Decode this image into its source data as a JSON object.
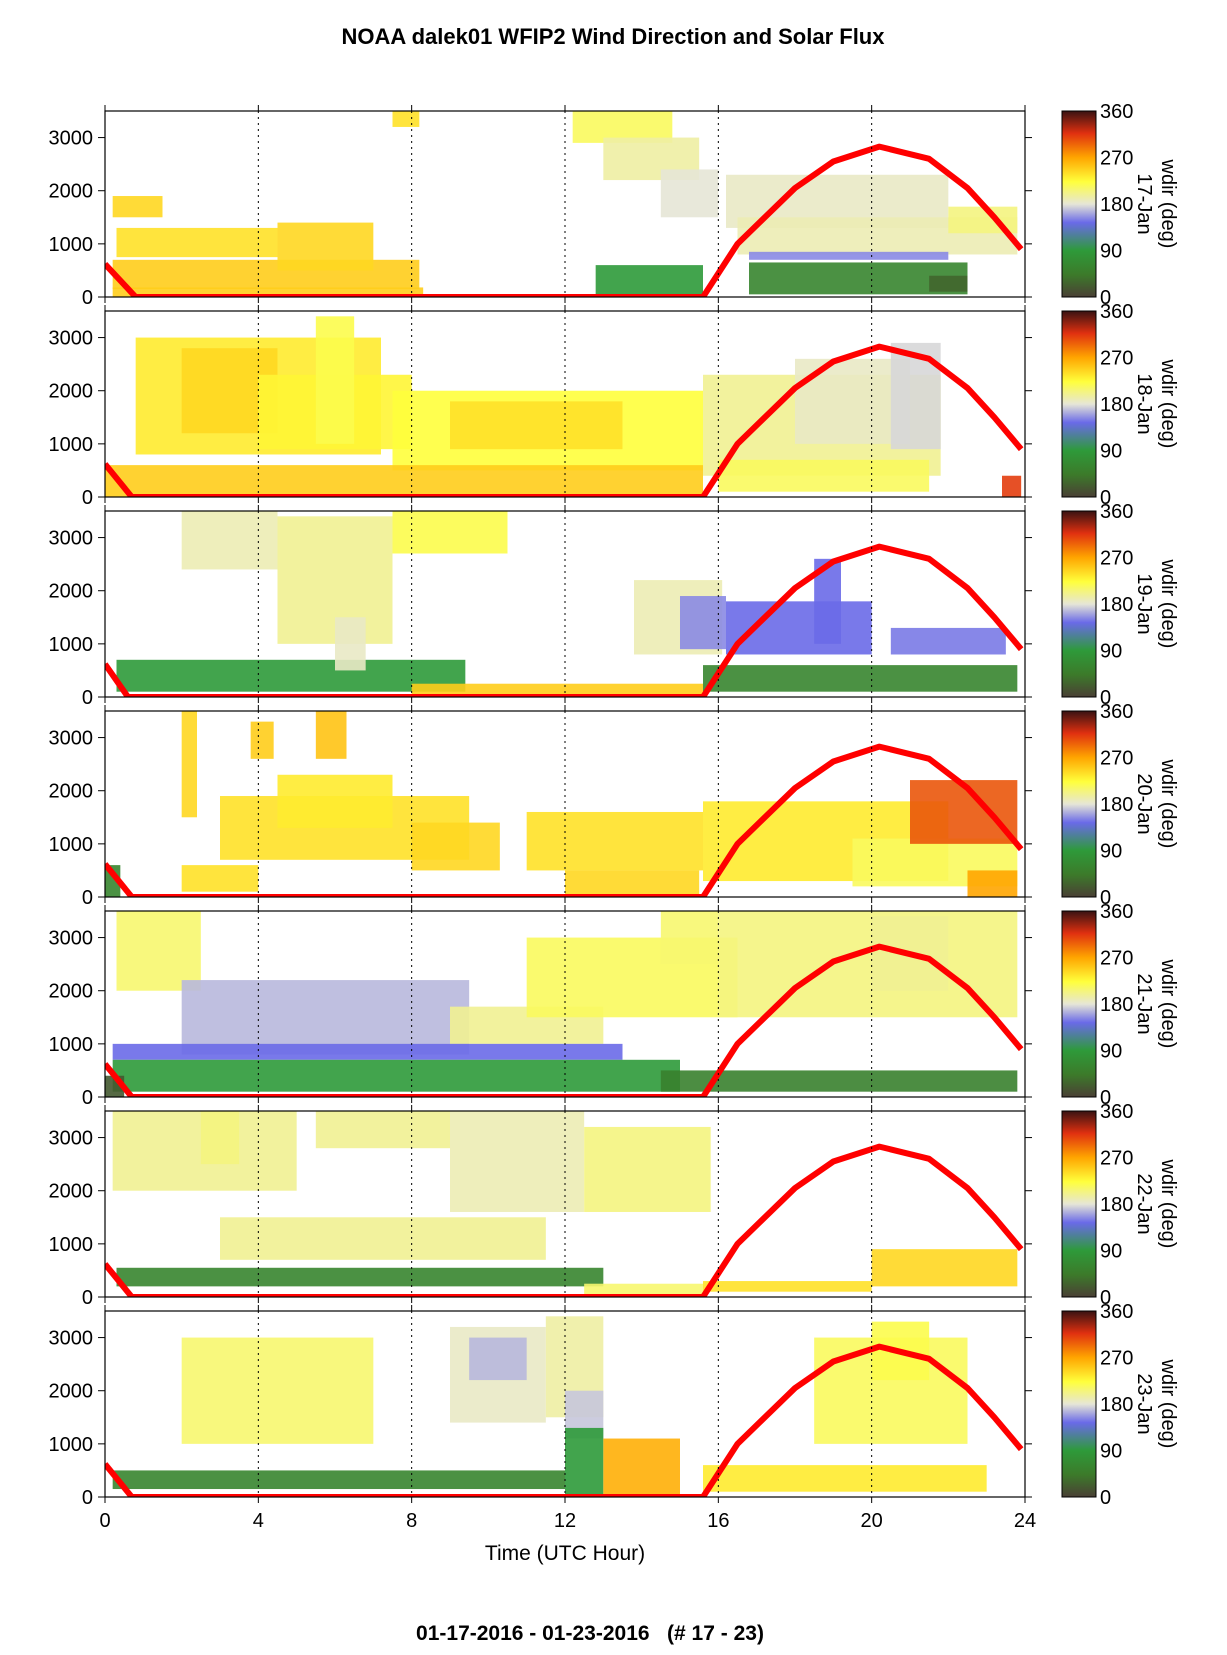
{
  "chart_data": {
    "type": "heatmap",
    "title": "NOAA dalek01 WFIP2 Wind Direction and Solar Flux",
    "footer": "01-17-2016 - 01-23-2016   (# 17 - 23)",
    "xlabel": "Time (UTC Hour)",
    "xlim": [
      0,
      24
    ],
    "x_ticks": [
      "0",
      "4",
      "8",
      "12",
      "16",
      "20",
      "24"
    ],
    "ylim": [
      0,
      3500
    ],
    "y_ticks": [
      "0",
      "1000",
      "2000",
      "3000"
    ],
    "grid": "vertical dotted lines at 4-hour intervals",
    "colorbar": {
      "label": "wdir (deg)",
      "ticks": [
        "0",
        "90",
        "180",
        "270",
        "360"
      ],
      "colors": [
        "#4a3f35",
        "#2e8b2e",
        "#7070e0",
        "#e8e8d0",
        "#ffff40",
        "#ffa500",
        "#e03010",
        "#3a1010"
      ]
    },
    "solar_flux_color": "#ff0000",
    "panels": [
      {
        "date": "17-Jan",
        "solar_flux": [
          [
            0,
            620
          ],
          [
            0.8,
            0
          ],
          [
            15.6,
            0
          ],
          [
            16.5,
            1000
          ],
          [
            18,
            2050
          ],
          [
            19,
            2550
          ],
          [
            20.2,
            2830
          ],
          [
            21.5,
            2600
          ],
          [
            22.5,
            2050
          ],
          [
            23.2,
            1500
          ],
          [
            23.9,
            900
          ]
        ],
        "wind_regions": [
          {
            "x0": 0.2,
            "x1": 8.2,
            "z0": 150,
            "z1": 700,
            "wdir": 250
          },
          {
            "x0": 0.3,
            "x1": 4.5,
            "z0": 750,
            "z1": 1300,
            "wdir": 240
          },
          {
            "x0": 4.5,
            "x1": 7.0,
            "z0": 500,
            "z1": 1400,
            "wdir": 245
          },
          {
            "x0": 0.2,
            "x1": 1.5,
            "z0": 1500,
            "z1": 1900,
            "wdir": 245
          },
          {
            "x0": 0.2,
            "x1": 8.3,
            "z0": 0,
            "z1": 180,
            "wdir": 250
          },
          {
            "x0": 7.5,
            "x1": 8.2,
            "z0": 3200,
            "z1": 3500,
            "wdir": 240
          },
          {
            "x0": 12.2,
            "x1": 14.8,
            "z0": 2900,
            "z1": 3500,
            "wdir": 215
          },
          {
            "x0": 13,
            "x1": 15.5,
            "z0": 2200,
            "z1": 3000,
            "wdir": 195
          },
          {
            "x0": 14.5,
            "x1": 16.0,
            "z0": 1500,
            "z1": 2400,
            "wdir": 180
          },
          {
            "x0": 12.8,
            "x1": 15.6,
            "z0": 50,
            "z1": 600,
            "wdir": 90
          },
          {
            "x0": 16.2,
            "x1": 22.0,
            "z0": 1300,
            "z1": 2300,
            "wdir": 185
          },
          {
            "x0": 16.5,
            "x1": 23.8,
            "z0": 800,
            "z1": 1500,
            "wdir": 190
          },
          {
            "x0": 22.0,
            "x1": 23.8,
            "z0": 1200,
            "z1": 1700,
            "wdir": 205
          },
          {
            "x0": 16.8,
            "x1": 22.0,
            "z0": 700,
            "z1": 850,
            "wdir": 150
          },
          {
            "x0": 16.8,
            "x1": 22.5,
            "z0": 50,
            "z1": 650,
            "wdir": 60
          },
          {
            "x0": 21.5,
            "x1": 22.5,
            "z0": 100,
            "z1": 400,
            "wdir": 30
          }
        ]
      },
      {
        "date": "18-Jan",
        "solar_flux": [
          [
            0,
            620
          ],
          [
            0.7,
            0
          ],
          [
            15.6,
            0
          ],
          [
            16.5,
            1000
          ],
          [
            18,
            2050
          ],
          [
            19,
            2550
          ],
          [
            20.2,
            2830
          ],
          [
            21.5,
            2600
          ],
          [
            22.5,
            2050
          ],
          [
            23.2,
            1500
          ],
          [
            23.9,
            900
          ]
        ],
        "wind_regions": [
          {
            "x0": 0.8,
            "x1": 7.2,
            "z0": 800,
            "z1": 3000,
            "wdir": 235
          },
          {
            "x0": 2.0,
            "x1": 4.5,
            "z0": 1200,
            "z1": 2800,
            "wdir": 245
          },
          {
            "x0": 4.0,
            "x1": 8.0,
            "z0": 900,
            "z1": 2300,
            "wdir": 230
          },
          {
            "x0": 5.5,
            "x1": 6.5,
            "z0": 1000,
            "z1": 3400,
            "wdir": 220
          },
          {
            "x0": 7.5,
            "x1": 15.6,
            "z0": 500,
            "z1": 2000,
            "wdir": 225
          },
          {
            "x0": 9.0,
            "x1": 13.5,
            "z0": 900,
            "z1": 1800,
            "wdir": 240
          },
          {
            "x0": 0.0,
            "x1": 15.6,
            "z0": 0,
            "z1": 600,
            "wdir": 250
          },
          {
            "x0": 15.6,
            "x1": 21.8,
            "z0": 400,
            "z1": 2300,
            "wdir": 200
          },
          {
            "x0": 18.0,
            "x1": 21.0,
            "z0": 1000,
            "z1": 2600,
            "wdir": 185
          },
          {
            "x0": 20.5,
            "x1": 21.8,
            "z0": 900,
            "z1": 2900,
            "wdir": 175
          },
          {
            "x0": 16.0,
            "x1": 21.5,
            "z0": 100,
            "z1": 700,
            "wdir": 215
          },
          {
            "x0": 23.4,
            "x1": 23.9,
            "z0": 0,
            "z1": 400,
            "wdir": 310
          }
        ]
      },
      {
        "date": "19-Jan",
        "solar_flux": [
          [
            0,
            620
          ],
          [
            0.6,
            0
          ],
          [
            15.6,
            0
          ],
          [
            16.5,
            1000
          ],
          [
            18,
            2050
          ],
          [
            19,
            2550
          ],
          [
            20.2,
            2830
          ],
          [
            21.5,
            2600
          ],
          [
            22.5,
            2050
          ],
          [
            23.2,
            1500
          ],
          [
            23.9,
            900
          ]
        ],
        "wind_regions": [
          {
            "x0": 0.3,
            "x1": 9.4,
            "z0": 100,
            "z1": 700,
            "wdir": 90
          },
          {
            "x0": 2.0,
            "x1": 4.5,
            "z0": 2400,
            "z1": 3500,
            "wdir": 190
          },
          {
            "x0": 4.5,
            "x1": 7.5,
            "z0": 1000,
            "z1": 3400,
            "wdir": 200
          },
          {
            "x0": 7.5,
            "x1": 10.5,
            "z0": 2700,
            "z1": 3500,
            "wdir": 220
          },
          {
            "x0": 6.0,
            "x1": 6.8,
            "z0": 500,
            "z1": 1500,
            "wdir": 185
          },
          {
            "x0": 8.0,
            "x1": 15.6,
            "z0": 0,
            "z1": 250,
            "wdir": 250
          },
          {
            "x0": 13.8,
            "x1": 16.1,
            "z0": 800,
            "z1": 2200,
            "wdir": 190
          },
          {
            "x0": 15.0,
            "x1": 16.2,
            "z0": 900,
            "z1": 1900,
            "wdir": 150
          },
          {
            "x0": 16.2,
            "x1": 20.0,
            "z0": 800,
            "z1": 1800,
            "wdir": 140
          },
          {
            "x0": 18.5,
            "x1": 19.2,
            "z0": 1000,
            "z1": 2600,
            "wdir": 140
          },
          {
            "x0": 20.5,
            "x1": 23.5,
            "z0": 800,
            "z1": 1300,
            "wdir": 145
          },
          {
            "x0": 15.6,
            "x1": 23.8,
            "z0": 100,
            "z1": 600,
            "wdir": 60
          }
        ]
      },
      {
        "date": "20-Jan",
        "solar_flux": [
          [
            0,
            620
          ],
          [
            0.7,
            0
          ],
          [
            15.6,
            0
          ],
          [
            16.5,
            1000
          ],
          [
            18,
            2050
          ],
          [
            19,
            2550
          ],
          [
            20.2,
            2830
          ],
          [
            21.5,
            2600
          ],
          [
            22.5,
            2050
          ],
          [
            23.2,
            1500
          ],
          [
            23.9,
            900
          ]
        ],
        "wind_regions": [
          {
            "x0": 2.0,
            "x1": 4.0,
            "z0": 100,
            "z1": 600,
            "wdir": 240
          },
          {
            "x0": 2.0,
            "x1": 2.4,
            "z0": 1500,
            "z1": 3500,
            "wdir": 245
          },
          {
            "x0": 3.8,
            "x1": 4.4,
            "z0": 2600,
            "z1": 3300,
            "wdir": 250
          },
          {
            "x0": 5.5,
            "x1": 6.3,
            "z0": 2600,
            "z1": 3500,
            "wdir": 255
          },
          {
            "x0": 3.0,
            "x1": 9.5,
            "z0": 700,
            "z1": 1900,
            "wdir": 240
          },
          {
            "x0": 4.5,
            "x1": 7.5,
            "z0": 1300,
            "z1": 2300,
            "wdir": 235
          },
          {
            "x0": 8.0,
            "x1": 10.3,
            "z0": 500,
            "z1": 1400,
            "wdir": 245
          },
          {
            "x0": 11.0,
            "x1": 15.6,
            "z0": 500,
            "z1": 1600,
            "wdir": 240
          },
          {
            "x0": 12.0,
            "x1": 15.5,
            "z0": 0,
            "z1": 500,
            "wdir": 245
          },
          {
            "x0": 15.6,
            "x1": 22.0,
            "z0": 300,
            "z1": 1800,
            "wdir": 235
          },
          {
            "x0": 19.5,
            "x1": 23.8,
            "z0": 200,
            "z1": 1100,
            "wdir": 215
          },
          {
            "x0": 21.0,
            "x1": 23.8,
            "z0": 1000,
            "z1": 2200,
            "wdir": 300
          },
          {
            "x0": 22.5,
            "x1": 23.8,
            "z0": 0,
            "z1": 500,
            "wdir": 270
          },
          {
            "x0": 0.0,
            "x1": 0.4,
            "z0": 0,
            "z1": 600,
            "wdir": 60
          }
        ]
      },
      {
        "date": "21-Jan",
        "solar_flux": [
          [
            0,
            620
          ],
          [
            0.7,
            0
          ],
          [
            15.6,
            0
          ],
          [
            16.5,
            1000
          ],
          [
            18,
            2050
          ],
          [
            19,
            2550
          ],
          [
            20.2,
            2830
          ],
          [
            21.5,
            2600
          ],
          [
            22.5,
            2050
          ],
          [
            23.2,
            1500
          ],
          [
            23.9,
            900
          ]
        ],
        "wind_regions": [
          {
            "x0": 0.3,
            "x1": 2.5,
            "z0": 2000,
            "z1": 3500,
            "wdir": 210
          },
          {
            "x0": 2.0,
            "x1": 9.5,
            "z0": 800,
            "z1": 2200,
            "wdir": 165
          },
          {
            "x0": 9.0,
            "x1": 13.0,
            "z0": 1000,
            "z1": 1700,
            "wdir": 200
          },
          {
            "x0": 11.0,
            "x1": 16.5,
            "z0": 1500,
            "z1": 3000,
            "wdir": 215
          },
          {
            "x0": 14.5,
            "x1": 16.0,
            "z0": 2500,
            "z1": 3500,
            "wdir": 210
          },
          {
            "x0": 16.0,
            "x1": 23.8,
            "z0": 1500,
            "z1": 3500,
            "wdir": 205
          },
          {
            "x0": 20.0,
            "x1": 22.0,
            "z0": 2000,
            "z1": 3400,
            "wdir": 200
          },
          {
            "x0": 0.2,
            "x1": 13.5,
            "z0": 700,
            "z1": 1000,
            "wdir": 140
          },
          {
            "x0": 0.2,
            "x1": 15.0,
            "z0": 100,
            "z1": 700,
            "wdir": 90
          },
          {
            "x0": 14.5,
            "x1": 23.8,
            "z0": 100,
            "z1": 500,
            "wdir": 55
          },
          {
            "x0": 0.0,
            "x1": 0.5,
            "z0": 0,
            "z1": 400,
            "wdir": 20
          }
        ]
      },
      {
        "date": "22-Jan",
        "solar_flux": [
          [
            0,
            620
          ],
          [
            0.7,
            0
          ],
          [
            15.6,
            0
          ],
          [
            16.5,
            1000
          ],
          [
            18,
            2050
          ],
          [
            19,
            2550
          ],
          [
            20.2,
            2830
          ],
          [
            21.5,
            2600
          ],
          [
            22.5,
            2050
          ],
          [
            23.2,
            1500
          ],
          [
            23.9,
            900
          ]
        ],
        "wind_regions": [
          {
            "x0": 0.2,
            "x1": 5.0,
            "z0": 2000,
            "z1": 3500,
            "wdir": 200
          },
          {
            "x0": 2.5,
            "x1": 3.5,
            "z0": 2500,
            "z1": 3500,
            "wdir": 205
          },
          {
            "x0": 5.5,
            "x1": 9.0,
            "z0": 2800,
            "z1": 3500,
            "wdir": 200
          },
          {
            "x0": 9.0,
            "x1": 12.5,
            "z0": 1600,
            "z1": 3500,
            "wdir": 190
          },
          {
            "x0": 12.5,
            "x1": 15.8,
            "z0": 1600,
            "z1": 3200,
            "wdir": 205
          },
          {
            "x0": 3.0,
            "x1": 11.5,
            "z0": 700,
            "z1": 1500,
            "wdir": 200
          },
          {
            "x0": 0.3,
            "x1": 13.0,
            "z0": 200,
            "z1": 550,
            "wdir": 60
          },
          {
            "x0": 12.5,
            "x1": 15.6,
            "z0": 0,
            "z1": 250,
            "wdir": 210
          },
          {
            "x0": 20.0,
            "x1": 23.8,
            "z0": 200,
            "z1": 900,
            "wdir": 245
          },
          {
            "x0": 15.6,
            "x1": 20.0,
            "z0": 100,
            "z1": 300,
            "wdir": 240
          }
        ]
      },
      {
        "date": "23-Jan",
        "solar_flux": [
          [
            0,
            620
          ],
          [
            0.7,
            0
          ],
          [
            15.6,
            0
          ],
          [
            16.5,
            1000
          ],
          [
            18,
            2050
          ],
          [
            19,
            2550
          ],
          [
            20.2,
            2830
          ],
          [
            21.5,
            2600
          ],
          [
            22.5,
            2050
          ],
          [
            23.2,
            1500
          ],
          [
            23.9,
            900
          ]
        ],
        "wind_regions": [
          {
            "x0": 0.2,
            "x1": 12.0,
            "z0": 150,
            "z1": 500,
            "wdir": 60
          },
          {
            "x0": 9.0,
            "x1": 11.5,
            "z0": 1400,
            "z1": 3200,
            "wdir": 185
          },
          {
            "x0": 9.5,
            "x1": 11.0,
            "z0": 2200,
            "z1": 3000,
            "wdir": 165
          },
          {
            "x0": 11.5,
            "x1": 13.0,
            "z0": 1500,
            "z1": 3400,
            "wdir": 195
          },
          {
            "x0": 12.0,
            "x1": 13.0,
            "z0": 1100,
            "z1": 2000,
            "wdir": 170
          },
          {
            "x0": 12.0,
            "x1": 13.0,
            "z0": 0,
            "z1": 1300,
            "wdir": 90
          },
          {
            "x0": 13.0,
            "x1": 15.0,
            "z0": 0,
            "z1": 1100,
            "wdir": 265
          },
          {
            "x0": 15.6,
            "x1": 23.0,
            "z0": 100,
            "z1": 600,
            "wdir": 235
          },
          {
            "x0": 18.5,
            "x1": 22.5,
            "z0": 1000,
            "z1": 3000,
            "wdir": 215
          },
          {
            "x0": 20.0,
            "x1": 21.5,
            "z0": 2200,
            "z1": 3300,
            "wdir": 220
          },
          {
            "x0": 2.0,
            "x1": 7.0,
            "z0": 1000,
            "z1": 3000,
            "wdir": 210
          }
        ]
      }
    ]
  }
}
